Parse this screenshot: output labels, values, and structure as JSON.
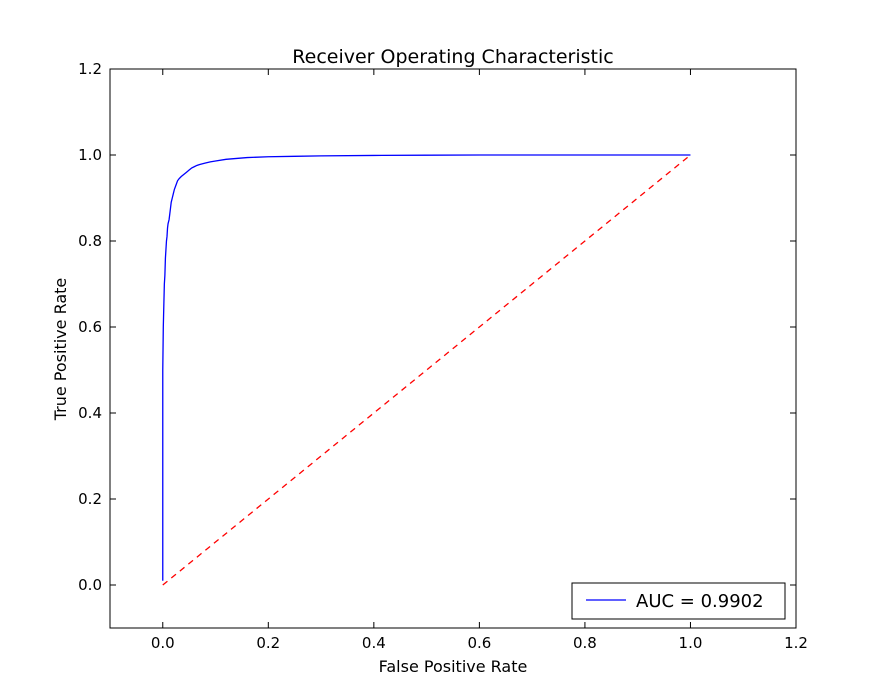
{
  "chart_data": {
    "type": "line",
    "title": "Receiver Operating Characteristic",
    "xlabel": "False Positive Rate",
    "ylabel": "True Positive Rate",
    "xlim": [
      -0.1,
      1.2
    ],
    "ylim": [
      -0.1,
      1.2
    ],
    "xticks": [
      "0.0",
      "0.2",
      "0.4",
      "0.6",
      "0.8",
      "1.0",
      "1.2"
    ],
    "yticks": [
      "0.0",
      "0.2",
      "0.4",
      "0.6",
      "0.8",
      "1.0",
      "1.2"
    ],
    "grid": false,
    "legend_position": "lower-right",
    "series": [
      {
        "name": "AUC = 0.9902",
        "color": "#0000ff",
        "style": "solid",
        "x": [
          0.0,
          0.0,
          0.001,
          0.002,
          0.003,
          0.004,
          0.005,
          0.006,
          0.007,
          0.008,
          0.009,
          0.01,
          0.012,
          0.014,
          0.016,
          0.018,
          0.02,
          0.022,
          0.025,
          0.028,
          0.031,
          0.035,
          0.04,
          0.045,
          0.05,
          0.055,
          0.06,
          0.065,
          0.07,
          0.08,
          0.09,
          0.1,
          0.12,
          0.14,
          0.16,
          0.2,
          0.25,
          0.3,
          0.4,
          0.5,
          0.6,
          0.7,
          0.8,
          0.9,
          1.0
        ],
        "y": [
          0.01,
          0.5,
          0.6,
          0.65,
          0.7,
          0.72,
          0.76,
          0.78,
          0.8,
          0.81,
          0.83,
          0.84,
          0.85,
          0.87,
          0.89,
          0.9,
          0.91,
          0.92,
          0.93,
          0.94,
          0.945,
          0.95,
          0.955,
          0.96,
          0.965,
          0.97,
          0.973,
          0.976,
          0.978,
          0.981,
          0.984,
          0.986,
          0.99,
          0.992,
          0.994,
          0.996,
          0.997,
          0.998,
          0.999,
          0.9995,
          1.0,
          1.0,
          1.0,
          1.0,
          1.0
        ]
      },
      {
        "color": "#ff0000",
        "style": "dashed",
        "x": [
          0.0,
          1.0
        ],
        "y": [
          0.0,
          1.0
        ]
      }
    ]
  }
}
